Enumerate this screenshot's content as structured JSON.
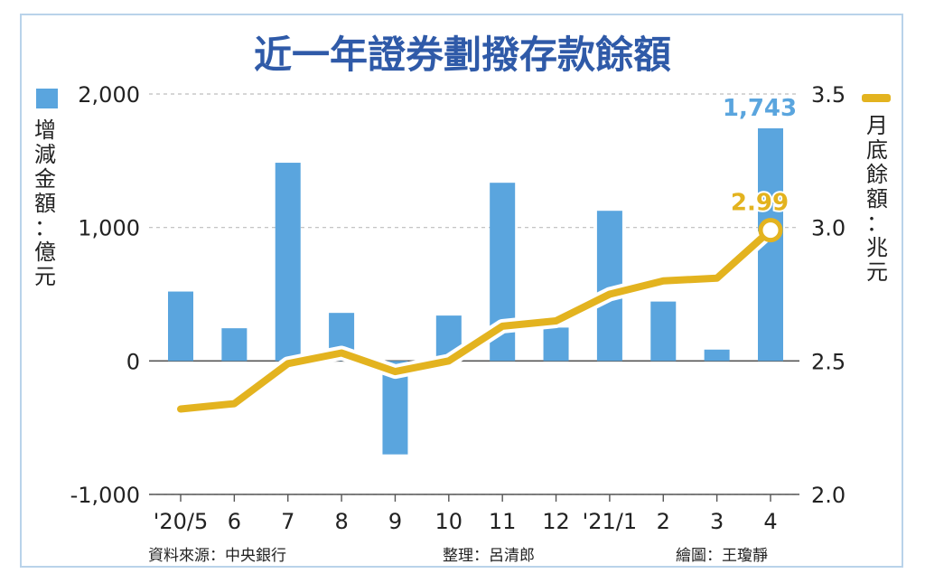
{
  "chart_data": {
    "type": "bar+line",
    "title": "近一年證券劃撥存款餘額",
    "categories": [
      "'20/5",
      "6",
      "7",
      "8",
      "9",
      "10",
      "11",
      "12",
      "'21/1",
      "2",
      "3",
      "4"
    ],
    "series": [
      {
        "name": "增減金額：億元",
        "type": "bar",
        "axis": "left",
        "values": [
          520,
          245,
          1485,
          360,
          -700,
          340,
          1335,
          250,
          1125,
          445,
          85,
          1743
        ]
      },
      {
        "name": "月底餘額：兆元",
        "type": "line",
        "axis": "right",
        "values": [
          2.32,
          2.34,
          2.49,
          2.53,
          2.46,
          2.5,
          2.63,
          2.65,
          2.75,
          2.8,
          2.81,
          2.99
        ]
      }
    ],
    "left_axis": {
      "label": "增減金額：億元",
      "ylim": [
        -1000,
        2000
      ],
      "ticks": [
        "2,000",
        "1,000",
        "0",
        "-1,000"
      ],
      "tick_values": [
        2000,
        1000,
        0,
        -1000
      ]
    },
    "right_axis": {
      "label": "月底餘額：兆元",
      "ylim": [
        2.0,
        3.5
      ],
      "ticks": [
        "3.5",
        "3.0",
        "2.5",
        "2.0"
      ],
      "tick_values": [
        3.5,
        3.0,
        2.5,
        2.0
      ]
    },
    "annotations": {
      "bar_last": "1,743",
      "line_last": "2.99"
    },
    "grid": "dashed horizontal"
  },
  "footer": {
    "source": "資料來源：中央銀行",
    "editor": "整理：呂清郎",
    "illustrator": "繪圖：王瓊靜"
  },
  "colors": {
    "bar": "#5aa5de",
    "line": "#e3b31f",
    "title": "#2f5aa8",
    "border": "#b9d3ea",
    "bar_label": "#5aa5de",
    "line_label": "#e3b31f"
  }
}
